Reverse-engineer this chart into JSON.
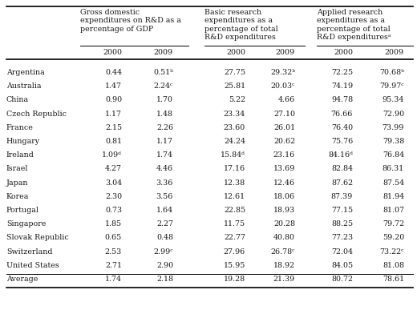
{
  "rows": [
    [
      "Argentina",
      "0.44",
      "0.51ᵇ",
      "27.75",
      "29.32ᵇ",
      "72.25",
      "70.68ᵇ"
    ],
    [
      "Australia",
      "1.47",
      "2.24ᶜ",
      "25.81",
      "20.03ᶜ",
      "74.19",
      "79.97ᶜ"
    ],
    [
      "China",
      "0.90",
      "1.70",
      "5.22",
      "4.66",
      "94.78",
      "95.34"
    ],
    [
      "Czech Republic",
      "1.17",
      "1.48",
      "23.34",
      "27.10",
      "76.66",
      "72.90"
    ],
    [
      "France",
      "2.15",
      "2.26",
      "23.60",
      "26.01",
      "76.40",
      "73.99"
    ],
    [
      "Hungary",
      "0.81",
      "1.17",
      "24.24",
      "20.62",
      "75.76",
      "79.38"
    ],
    [
      "Ireland",
      "1.09ᵈ",
      "1.74",
      "15.84ᵈ",
      "23.16",
      "84.16ᵈ",
      "76.84"
    ],
    [
      "Israel",
      "4.27",
      "4.46",
      "17.16",
      "13.69",
      "82.84",
      "86.31"
    ],
    [
      "Japan",
      "3.04",
      "3.36",
      "12.38",
      "12.46",
      "87.62",
      "87.54"
    ],
    [
      "Korea",
      "2.30",
      "3.56",
      "12.61",
      "18.06",
      "87.39",
      "81.94"
    ],
    [
      "Portugal",
      "0.73",
      "1.64",
      "22.85",
      "18.93",
      "77.15",
      "81.07"
    ],
    [
      "Singapore",
      "1.85",
      "2.27",
      "11.75",
      "20.28",
      "88.25",
      "79.72"
    ],
    [
      "Slovak Republic",
      "0.65",
      "0.48",
      "22.77",
      "40.80",
      "77.23",
      "59.20"
    ],
    [
      "Switzerland",
      "2.53",
      "2.99ᶜ",
      "27.96",
      "26.78ᶜ",
      "72.04",
      "73.22ᶜ"
    ],
    [
      "United States",
      "2.71",
      "2.90",
      "15.95",
      "18.92",
      "84.05",
      "81.08"
    ],
    [
      "Average",
      "1.74",
      "2.18",
      "19.28",
      "21.39",
      "80.72",
      "78.61"
    ]
  ],
  "group_headers": [
    "Gross domestic\nexpenditures on R&D as a\npercentage of GDP",
    "Basic research\nexpenditures as a\npercentage of total\nR&D expenditures",
    "Applied research\nexpenditures as a\npercentage of total\nR&D expendituresᵃ"
  ],
  "col_headers": [
    "2000",
    "2009",
    "2000",
    "2009",
    "2000",
    "2009"
  ],
  "bg_color": "#ffffff",
  "text_color": "#1a1a1a",
  "font_size": 6.8,
  "header_font_size": 6.8
}
